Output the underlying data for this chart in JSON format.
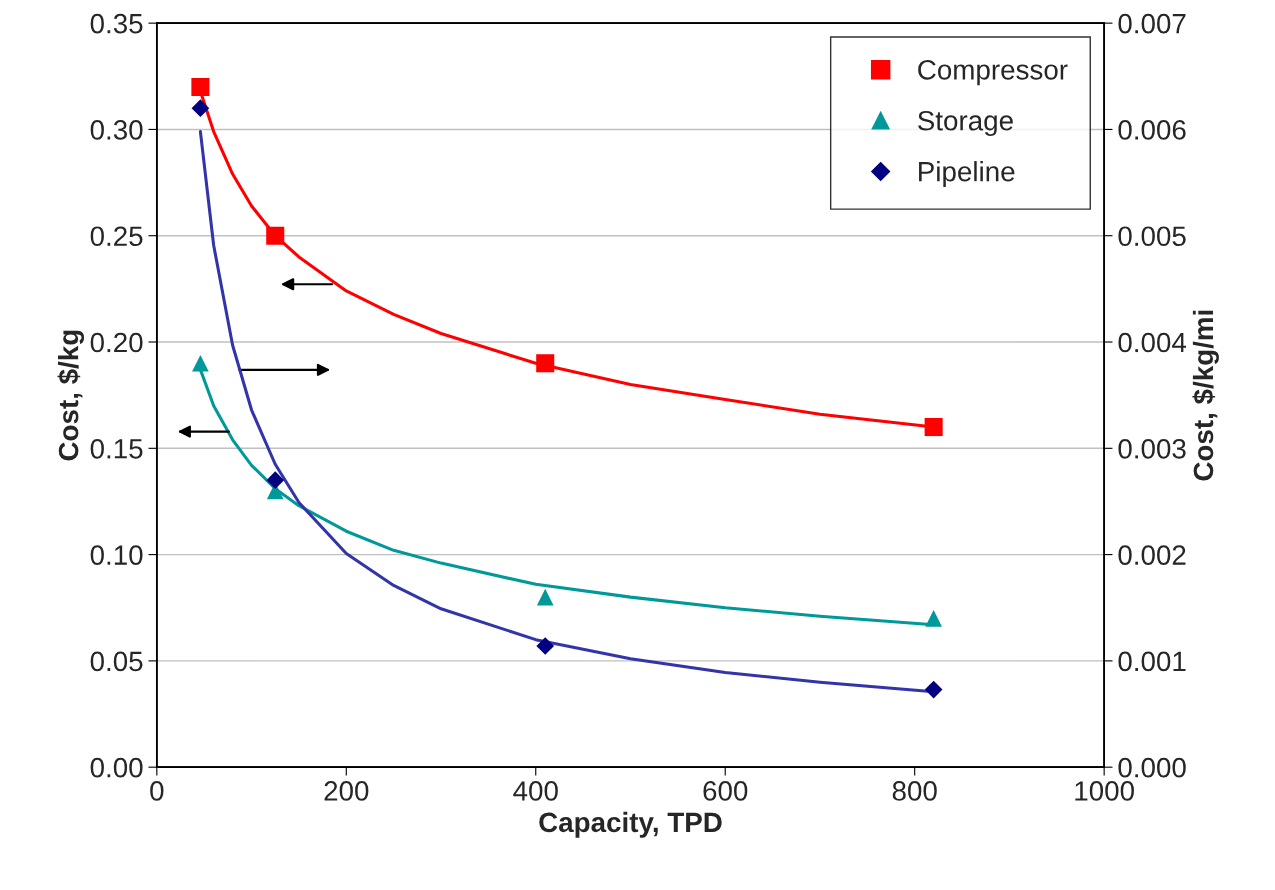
{
  "chart_data": {
    "type": "scatter",
    "xlabel": "Capacity, TPD",
    "ylabel": "Cost, $/kg",
    "y2label": "Cost, $/kg/mi",
    "xlim": [
      0,
      1000
    ],
    "xticks": [
      0,
      200,
      400,
      600,
      800,
      1000
    ],
    "ylim": [
      0,
      0.35
    ],
    "yticks": [
      {
        "value": 0,
        "label": "0.00"
      },
      {
        "value": 0.05,
        "label": "0.05"
      },
      {
        "value": 0.1,
        "label": "0.10"
      },
      {
        "value": 0.15,
        "label": "0.15"
      },
      {
        "value": 0.2,
        "label": "0.20"
      },
      {
        "value": 0.25,
        "label": "0.25"
      },
      {
        "value": 0.3,
        "label": "0.30"
      },
      {
        "value": 0.35,
        "label": "0.35"
      }
    ],
    "y2lim": [
      0,
      0.007
    ],
    "y2ticks": [
      {
        "value": 0,
        "label": "0.000"
      },
      {
        "value": 0.001,
        "label": "0.001"
      },
      {
        "value": 0.002,
        "label": "0.002"
      },
      {
        "value": 0.003,
        "label": "0.003"
      },
      {
        "value": 0.004,
        "label": "0.004"
      },
      {
        "value": 0.005,
        "label": "0.005"
      },
      {
        "value": 0.006,
        "label": "0.006"
      },
      {
        "value": 0.007,
        "label": "0.007"
      }
    ],
    "grid": "y",
    "legend": "top right",
    "series": [
      {
        "name": "Compressor",
        "marker": "square",
        "color": "#ff0000",
        "x": [
          46,
          125,
          410,
          820
        ],
        "values": [
          0.32,
          0.25,
          0.19,
          0.16
        ]
      },
      {
        "name": "Storage",
        "marker": "triangle",
        "color": "#009999",
        "x": [
          46,
          125,
          410,
          820
        ],
        "values": [
          0.19,
          0.13,
          0.08,
          0.07
        ]
      },
      {
        "name": "Pipeline",
        "marker": "diamond",
        "color": "#000080",
        "axis": "y2",
        "x": [
          46,
          125,
          410,
          820
        ],
        "values": [
          0.0062,
          0.0027,
          0.00114,
          0.00073
        ]
      },
      {
        "type": "line",
        "marker": "none",
        "color": "#ff0000",
        "x": [
          46,
          60,
          80,
          100,
          125,
          150,
          200,
          250,
          300,
          400,
          500,
          600,
          700,
          820
        ],
        "values": [
          0.318,
          0.299,
          0.279,
          0.264,
          0.25,
          0.24,
          0.224,
          0.213,
          0.204,
          0.19,
          0.18,
          0.173,
          0.166,
          0.16
        ]
      },
      {
        "type": "line",
        "marker": "none",
        "color": "#009999",
        "x": [
          46,
          60,
          80,
          100,
          125,
          150,
          200,
          250,
          300,
          400,
          500,
          600,
          700,
          820
        ],
        "values": [
          0.187,
          0.17,
          0.154,
          0.142,
          0.131,
          0.123,
          0.111,
          0.102,
          0.096,
          0.086,
          0.08,
          0.075,
          0.071,
          0.067
        ]
      },
      {
        "type": "line",
        "marker": "none",
        "color": "#3333aa",
        "axis": "y2",
        "x": [
          46,
          60,
          80,
          100,
          125,
          150,
          200,
          250,
          300,
          400,
          500,
          600,
          700,
          820
        ],
        "values": [
          0.00598,
          0.00491,
          0.00397,
          0.00336,
          0.00285,
          0.00249,
          0.00201,
          0.00171,
          0.00149,
          0.0012,
          0.00102,
          0.00089,
          0.0008,
          0.00071
        ]
      }
    ]
  }
}
